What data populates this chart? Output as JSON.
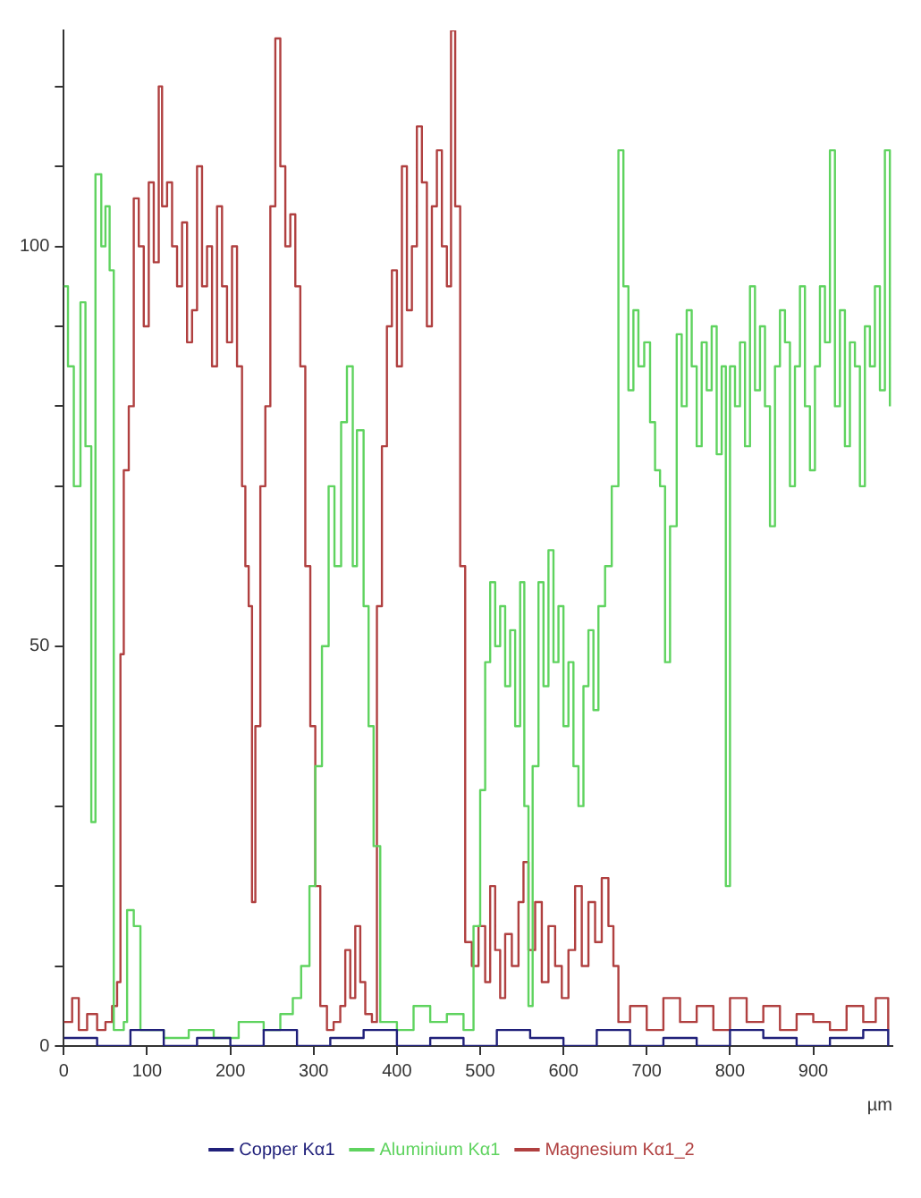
{
  "chart_data": {
    "type": "step",
    "xlabel": "µm",
    "xlim": [
      0,
      995
    ],
    "xticks": [
      0,
      100,
      200,
      300,
      400,
      500,
      600,
      700,
      800,
      900
    ],
    "ylim": [
      0,
      127
    ],
    "yticks": [
      0,
      {
        "value": 10,
        "label": null
      },
      {
        "value": 20,
        "label": null
      },
      {
        "value": 30,
        "label": null
      },
      {
        "value": 40,
        "label": null
      },
      50,
      {
        "value": 60,
        "label": null
      },
      {
        "value": 70,
        "label": null
      },
      {
        "value": 80,
        "label": null
      },
      {
        "value": 90,
        "label": null
      },
      100,
      {
        "value": 110,
        "label": null
      },
      {
        "value": 120,
        "label": null
      }
    ],
    "grid": false,
    "legend": "bottom",
    "marker": "none",
    "line_style": "solid",
    "series": [
      {
        "name": "Copper Kα1",
        "color": "#20207a",
        "x": [
          0,
          40,
          80,
          120,
          160,
          200,
          240,
          280,
          320,
          360,
          400,
          440,
          480,
          520,
          560,
          600,
          640,
          680,
          720,
          760,
          800,
          840,
          880,
          920,
          960,
          990
        ],
        "values": [
          1,
          0,
          2,
          0,
          1,
          0,
          2,
          0,
          1,
          2,
          0,
          1,
          0,
          2,
          1,
          0,
          2,
          0,
          1,
          0,
          2,
          1,
          0,
          1,
          2,
          0
        ]
      },
      {
        "name": "Aluminium Kα1",
        "color": "#5fd35f",
        "x": [
          0,
          5,
          12,
          20,
          26,
          33,
          38,
          45,
          50,
          55,
          60,
          72,
          76,
          84,
          92,
          120,
          150,
          180,
          210,
          240,
          260,
          275,
          285,
          295,
          302,
          310,
          318,
          325,
          333,
          340,
          347,
          352,
          360,
          366,
          372,
          380,
          400,
          420,
          440,
          460,
          480,
          492,
          500,
          506,
          512,
          518,
          524,
          530,
          536,
          542,
          548,
          553,
          558,
          563,
          570,
          576,
          582,
          588,
          594,
          600,
          606,
          612,
          618,
          624,
          630,
          636,
          642,
          650,
          658,
          666,
          672,
          678,
          684,
          690,
          697,
          704,
          710,
          716,
          722,
          728,
          736,
          742,
          748,
          754,
          760,
          766,
          772,
          778,
          784,
          790,
          795,
          800,
          806,
          812,
          818,
          824,
          830,
          836,
          842,
          848,
          854,
          860,
          866,
          872,
          878,
          884,
          890,
          896,
          902,
          908,
          914,
          920,
          926,
          932,
          938,
          944,
          950,
          956,
          962,
          968,
          974,
          980,
          986,
          992
        ],
        "values": [
          95,
          85,
          70,
          93,
          75,
          28,
          109,
          100,
          105,
          97,
          2,
          3,
          17,
          15,
          2,
          1,
          2,
          1,
          3,
          2,
          4,
          6,
          10,
          20,
          35,
          50,
          70,
          60,
          78,
          85,
          60,
          77,
          55,
          40,
          25,
          3,
          2,
          5,
          3,
          4,
          2,
          15,
          32,
          48,
          58,
          50,
          55,
          45,
          52,
          40,
          58,
          30,
          5,
          35,
          58,
          45,
          62,
          48,
          55,
          40,
          48,
          35,
          30,
          45,
          52,
          42,
          55,
          60,
          70,
          112,
          95,
          82,
          92,
          85,
          88,
          78,
          72,
          70,
          48,
          65,
          89,
          80,
          92,
          85,
          75,
          88,
          82,
          90,
          74,
          85,
          20,
          85,
          80,
          88,
          75,
          95,
          82,
          90,
          80,
          65,
          85,
          92,
          88,
          70,
          85,
          95,
          80,
          72,
          85,
          95,
          88,
          112,
          80,
          92,
          75,
          88,
          85,
          70,
          90,
          85,
          95,
          82,
          112,
          80
        ]
      },
      {
        "name": "Magnesium Kα1_2",
        "color": "#b04040",
        "x": [
          0,
          10,
          18,
          28,
          40,
          50,
          58,
          64,
          68,
          72,
          78,
          84,
          90,
          96,
          102,
          108,
          114,
          118,
          124,
          130,
          136,
          142,
          148,
          154,
          160,
          166,
          172,
          178,
          184,
          190,
          196,
          202,
          208,
          214,
          218,
          222,
          226,
          230,
          236,
          242,
          248,
          254,
          260,
          266,
          272,
          278,
          284,
          290,
          296,
          302,
          308,
          316,
          324,
          332,
          338,
          344,
          350,
          356,
          362,
          370,
          376,
          382,
          388,
          394,
          400,
          406,
          412,
          418,
          424,
          430,
          436,
          442,
          448,
          454,
          460,
          465,
          470,
          476,
          482,
          490,
          498,
          506,
          512,
          518,
          524,
          530,
          538,
          546,
          552,
          558,
          566,
          574,
          582,
          590,
          598,
          606,
          614,
          622,
          630,
          638,
          646,
          654,
          660,
          666,
          680,
          700,
          720,
          740,
          760,
          780,
          800,
          820,
          840,
          860,
          880,
          900,
          920,
          940,
          960,
          975,
          990
        ],
        "values": [
          3,
          6,
          2,
          4,
          2,
          3,
          5,
          8,
          49,
          72,
          80,
          106,
          100,
          90,
          108,
          98,
          120,
          105,
          108,
          100,
          95,
          103,
          88,
          92,
          110,
          95,
          100,
          85,
          105,
          95,
          88,
          100,
          85,
          70,
          60,
          55,
          18,
          40,
          70,
          80,
          105,
          126,
          110,
          100,
          104,
          95,
          85,
          60,
          40,
          20,
          5,
          2,
          3,
          5,
          12,
          6,
          15,
          8,
          4,
          3,
          55,
          75,
          90,
          97,
          85,
          110,
          92,
          100,
          115,
          108,
          90,
          105,
          112,
          100,
          95,
          127,
          105,
          60,
          13,
          10,
          15,
          8,
          20,
          12,
          6,
          14,
          10,
          18,
          23,
          12,
          18,
          8,
          15,
          10,
          6,
          12,
          20,
          10,
          18,
          13,
          21,
          15,
          10,
          3,
          5,
          2,
          6,
          3,
          5,
          2,
          6,
          3,
          5,
          2,
          4,
          3,
          2,
          5,
          3,
          6,
          2
        ]
      }
    ]
  }
}
